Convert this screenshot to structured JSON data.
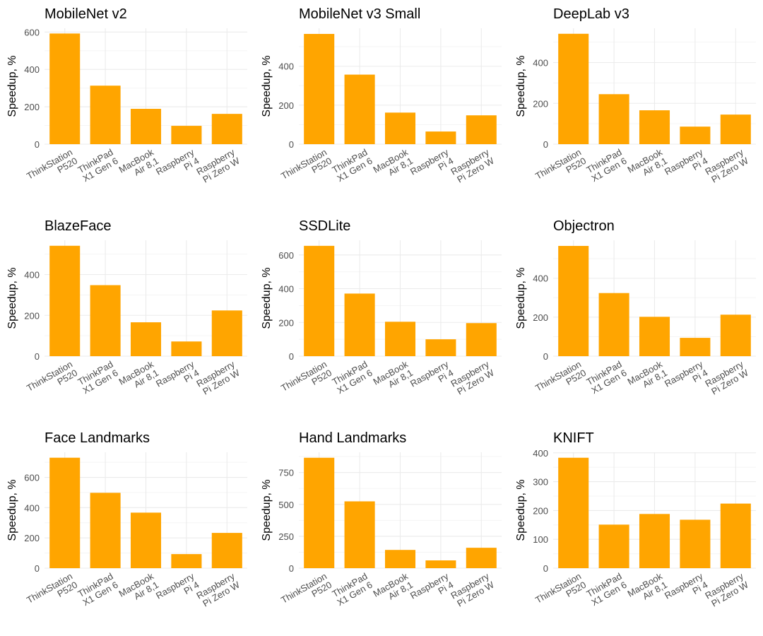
{
  "figure": {
    "bar_color": "#FFA500",
    "grid_major_color": "#EBEBEB",
    "grid_minor_color": "#F5F5F5",
    "tick_text_color": "#4D4D4D",
    "title_color": "#000000"
  },
  "chart_data": [
    {
      "type": "bar",
      "title": "MobileNet v2",
      "xlabel": "",
      "ylabel": "Speedup, %",
      "categories": [
        "ThinkStation\nP520",
        "ThinkPad\nX1 Gen 6",
        "MacBook\nAir 8,1",
        "Raspberry\nPi 4",
        "Raspberry\nPi Zero W"
      ],
      "values": [
        592,
        313,
        189,
        98,
        162
      ],
      "yticks": [
        0,
        200,
        400,
        600
      ],
      "ylim": [
        0,
        620
      ],
      "grid": true
    },
    {
      "type": "bar",
      "title": "MobileNet v3 Small",
      "xlabel": "",
      "ylabel": "Speedup, %",
      "categories": [
        "ThinkStation\nP520",
        "ThinkPad\nX1 Gen 6",
        "MacBook\nAir 8,1",
        "Raspberry\nPi 4",
        "Raspberry\nPi Zero W"
      ],
      "values": [
        566,
        357,
        162,
        65,
        148
      ],
      "yticks": [
        0,
        200,
        400
      ],
      "ylim": [
        0,
        595
      ],
      "grid": true
    },
    {
      "type": "bar",
      "title": "DeepLab v3",
      "xlabel": "",
      "ylabel": "Speedup, %",
      "categories": [
        "ThinkStation\nP520",
        "ThinkPad\nX1 Gen 6",
        "MacBook\nAir 8,1",
        "Raspberry\nPi 4",
        "Raspberry\nPi Zero W"
      ],
      "values": [
        541,
        245,
        166,
        86,
        145
      ],
      "yticks": [
        0,
        200,
        400
      ],
      "ylim": [
        0,
        568
      ],
      "grid": true
    },
    {
      "type": "bar",
      "title": "BlazeFace",
      "xlabel": "",
      "ylabel": "Speedup, %",
      "categories": [
        "ThinkStation\nP520",
        "ThinkPad\nX1 Gen 6",
        "MacBook\nAir 8,1",
        "Raspberry\nPi 4",
        "Raspberry\nPi Zero W"
      ],
      "values": [
        541,
        348,
        166,
        72,
        224
      ],
      "yticks": [
        0,
        200,
        400
      ],
      "ylim": [
        0,
        568
      ],
      "grid": true
    },
    {
      "type": "bar",
      "title": "SSDLite",
      "xlabel": "",
      "ylabel": "Speedup, %",
      "categories": [
        "ThinkStation\nP520",
        "ThinkPad\nX1 Gen 6",
        "MacBook\nAir 8,1",
        "Raspberry\nPi 4",
        "Raspberry\nPi Zero W"
      ],
      "values": [
        654,
        371,
        204,
        100,
        196
      ],
      "yticks": [
        0,
        200,
        400,
        600
      ],
      "ylim": [
        0,
        687
      ],
      "grid": true
    },
    {
      "type": "bar",
      "title": "Objectron",
      "xlabel": "",
      "ylabel": "Speedup, %",
      "categories": [
        "ThinkStation\nP520",
        "ThinkPad\nX1 Gen 6",
        "MacBook\nAir 8,1",
        "Raspberry\nPi 4",
        "Raspberry\nPi Zero W"
      ],
      "values": [
        566,
        324,
        202,
        94,
        213
      ],
      "yticks": [
        0,
        200,
        400
      ],
      "ylim": [
        0,
        595
      ],
      "grid": true
    },
    {
      "type": "bar",
      "title": "Face Landmarks",
      "xlabel": "",
      "ylabel": "Speedup, %",
      "categories": [
        "ThinkStation\nP520",
        "ThinkPad\nX1 Gen 6",
        "MacBook\nAir 8,1",
        "Raspberry\nPi 4",
        "Raspberry\nPi Zero W"
      ],
      "values": [
        730,
        498,
        367,
        93,
        233
      ],
      "yticks": [
        0,
        200,
        400,
        600
      ],
      "ylim": [
        0,
        766
      ],
      "grid": true
    },
    {
      "type": "bar",
      "title": "Hand Landmarks",
      "xlabel": "",
      "ylabel": "Speedup, %",
      "categories": [
        "ThinkStation\nP520",
        "ThinkPad\nX1 Gen 6",
        "MacBook\nAir 8,1",
        "Raspberry\nPi 4",
        "Raspberry\nPi Zero W"
      ],
      "values": [
        866,
        524,
        143,
        61,
        160
      ],
      "yticks": [
        0,
        250,
        500,
        750
      ],
      "ylim": [
        0,
        909
      ],
      "grid": true
    },
    {
      "type": "bar",
      "title": "KNIFT",
      "xlabel": "",
      "ylabel": "Speedup, %",
      "categories": [
        "ThinkStation\nP520",
        "ThinkPad\nX1 Gen 6",
        "MacBook\nAir 8,1",
        "Raspberry\nPi 4",
        "Raspberry\nPi Zero W"
      ],
      "values": [
        383,
        151,
        188,
        168,
        224
      ],
      "yticks": [
        0,
        100,
        200,
        300,
        400
      ],
      "ylim": [
        0,
        402
      ],
      "grid": true
    }
  ]
}
